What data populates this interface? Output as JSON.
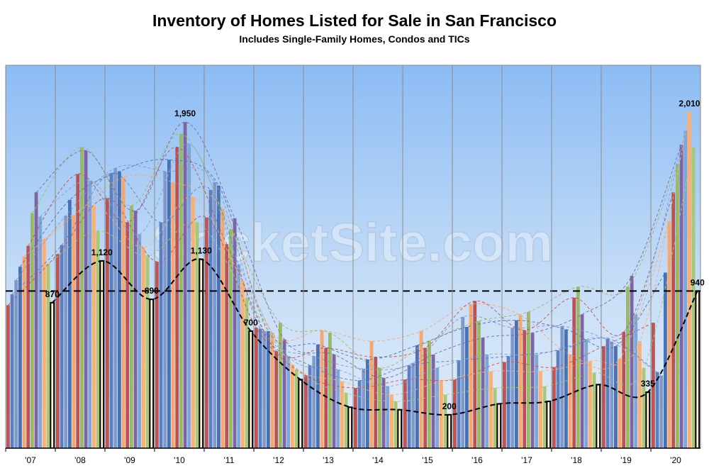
{
  "chart_data": {
    "type": "bar",
    "title": "Inventory of Homes Listed for Sale in San Francisco",
    "subtitle": "Includes Single-Family Homes, Condos and TICs",
    "watermark": "SocketSite.com",
    "categories": [
      "'07",
      "'08",
      "'09",
      "'10",
      "'11",
      "'12",
      "'13",
      "'14",
      "'15",
      "'16",
      "'17",
      "'18",
      "'19",
      "'20"
    ],
    "ylim": [
      0,
      2290
    ],
    "reference_value": 940,
    "trend_lines": true,
    "series": [
      {
        "color": "#c8504f",
        "values": [
          855,
          1160,
          1495,
          1115,
          1380,
          720,
          435,
          360,
          410,
          410,
          515,
          485,
          610,
          750
        ]
      },
      {
        "color": "#5b7fbf",
        "values": [
          920,
          1215,
          1645,
          1350,
          1545,
          715,
          495,
          405,
          495,
          525,
          550,
          585,
          655,
          455
        ]
      },
      {
        "color": "#8099c9",
        "values": [
          1005,
          1390,
          1675,
          1655,
          1590,
          700,
          550,
          475,
          510,
          785,
          720,
          730,
          635,
          435
        ]
      },
      {
        "color": "#4a72b0",
        "values": [
          1085,
          1485,
          1655,
          1725,
          1570,
          700,
          620,
          530,
          615,
          725,
          765,
          710,
          610,
          1050
        ]
      },
      {
        "color": "#f4a870",
        "values": [
          1145,
          1390,
          1620,
          1590,
          1430,
          690,
          705,
          640,
          700,
          860,
          795,
          560,
          535,
          1355
        ]
      },
      {
        "color": "#c05050",
        "values": [
          1210,
          1640,
          1350,
          1800,
          1220,
          580,
          600,
          545,
          600,
          880,
          705,
          900,
          695,
          1530
        ]
      },
      {
        "color": "#9bbb59",
        "values": [
          1405,
          1800,
          1450,
          1880,
          1310,
          750,
          690,
          480,
          640,
          760,
          815,
          965,
          965,
          1700
        ]
      },
      {
        "color": "#8064a2",
        "values": [
          1530,
          1780,
          1420,
          1950,
          1375,
          650,
          560,
          420,
          560,
          660,
          690,
          800,
          1030,
          1815
        ],
        "value_labels": [
          null,
          null,
          null,
          "1,950",
          null,
          null,
          null,
          null,
          null,
          null,
          null,
          null,
          null,
          null
        ]
      },
      {
        "color": "#7fa6d6",
        "values": [
          1385,
          1600,
          1280,
          1820,
          1100,
          550,
          470,
          370,
          480,
          560,
          560,
          650,
          800,
          1900
        ]
      },
      {
        "color": "#f7b07a",
        "values": [
          1250,
          1450,
          1200,
          1500,
          1000,
          500,
          400,
          320,
          400,
          460,
          460,
          520,
          640,
          2010
        ],
        "value_labels": [
          null,
          null,
          null,
          null,
          null,
          null,
          null,
          null,
          null,
          null,
          null,
          null,
          null,
          "2,010"
        ]
      },
      {
        "color": "#a8c878",
        "values": [
          1100,
          1300,
          1150,
          1350,
          900,
          470,
          330,
          280,
          320,
          360,
          370,
          450,
          480,
          1800
        ]
      },
      {
        "color": "#fff3d6",
        "outline": "#000000",
        "values": [
          870,
          1120,
          890,
          1130,
          700,
          410,
          245,
          230,
          200,
          265,
          280,
          380,
          335,
          940
        ],
        "value_labels": [
          "870",
          "1,120",
          "890",
          "1,130",
          "700",
          null,
          null,
          null,
          "200",
          null,
          null,
          null,
          "335",
          "940"
        ]
      }
    ]
  }
}
